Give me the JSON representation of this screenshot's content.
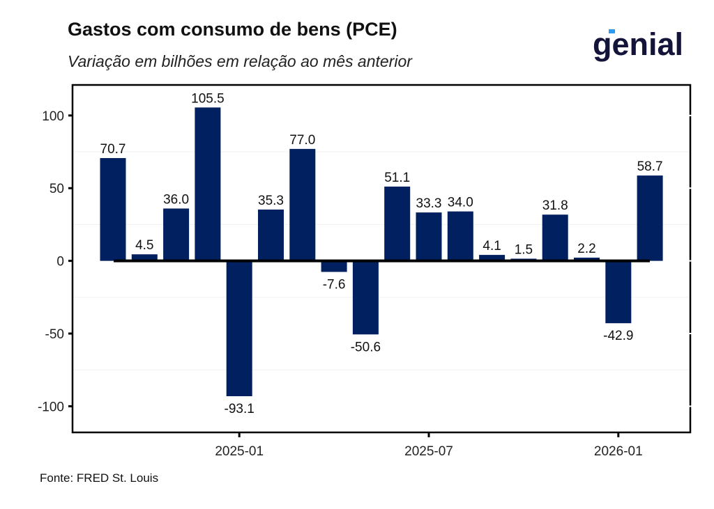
{
  "header": {
    "title": "Gastos com consumo de bens (PCE)",
    "subtitle": "Variação em bilhões em relação ao mês anterior",
    "logo": "genial"
  },
  "footer": {
    "source": "Fonte: FRED St. Louis"
  },
  "colors": {
    "bar": "#002060",
    "zero_line": "#000000",
    "grid": "#f0f0f0"
  },
  "chart_data": {
    "type": "bar",
    "title": "Gastos com consumo de bens (PCE)",
    "subtitle": "Variação em bilhões em relação ao mês anterior",
    "xlabel": "",
    "ylabel": "",
    "categories": [
      "2024-09",
      "2024-10",
      "2024-11",
      "2024-12",
      "2025-01",
      "2025-02",
      "2025-03",
      "2025-04",
      "2025-05",
      "2025-06",
      "2025-07",
      "2025-08",
      "2025-09",
      "2025-10",
      "2025-11",
      "2025-12",
      "2026-01",
      "2026-02"
    ],
    "values": [
      70.7,
      4.5,
      36.0,
      105.5,
      -93.1,
      35.3,
      77.0,
      -7.6,
      -50.6,
      51.1,
      33.3,
      34.0,
      4.1,
      1.5,
      31.8,
      2.2,
      -42.9,
      58.7
    ],
    "data_labels": [
      "70.7",
      "4.5",
      "36.0",
      "105.5",
      "-93.1",
      "35.3",
      "77.0",
      "-7.6",
      "-50.6",
      "51.1",
      "33.3",
      "34.0",
      "4.1",
      "1.5",
      "31.8",
      "2.2",
      "-42.9",
      "58.7"
    ],
    "x_ticks": [
      "2025-01",
      "2025-07",
      "2026-01"
    ],
    "y_ticks": [
      -100,
      -50,
      0,
      50,
      100
    ],
    "y_tick_labels": [
      "-100",
      "-50",
      "0",
      "50",
      "100"
    ],
    "ylim": [
      -118,
      121
    ],
    "grid": true,
    "legend": "none"
  }
}
